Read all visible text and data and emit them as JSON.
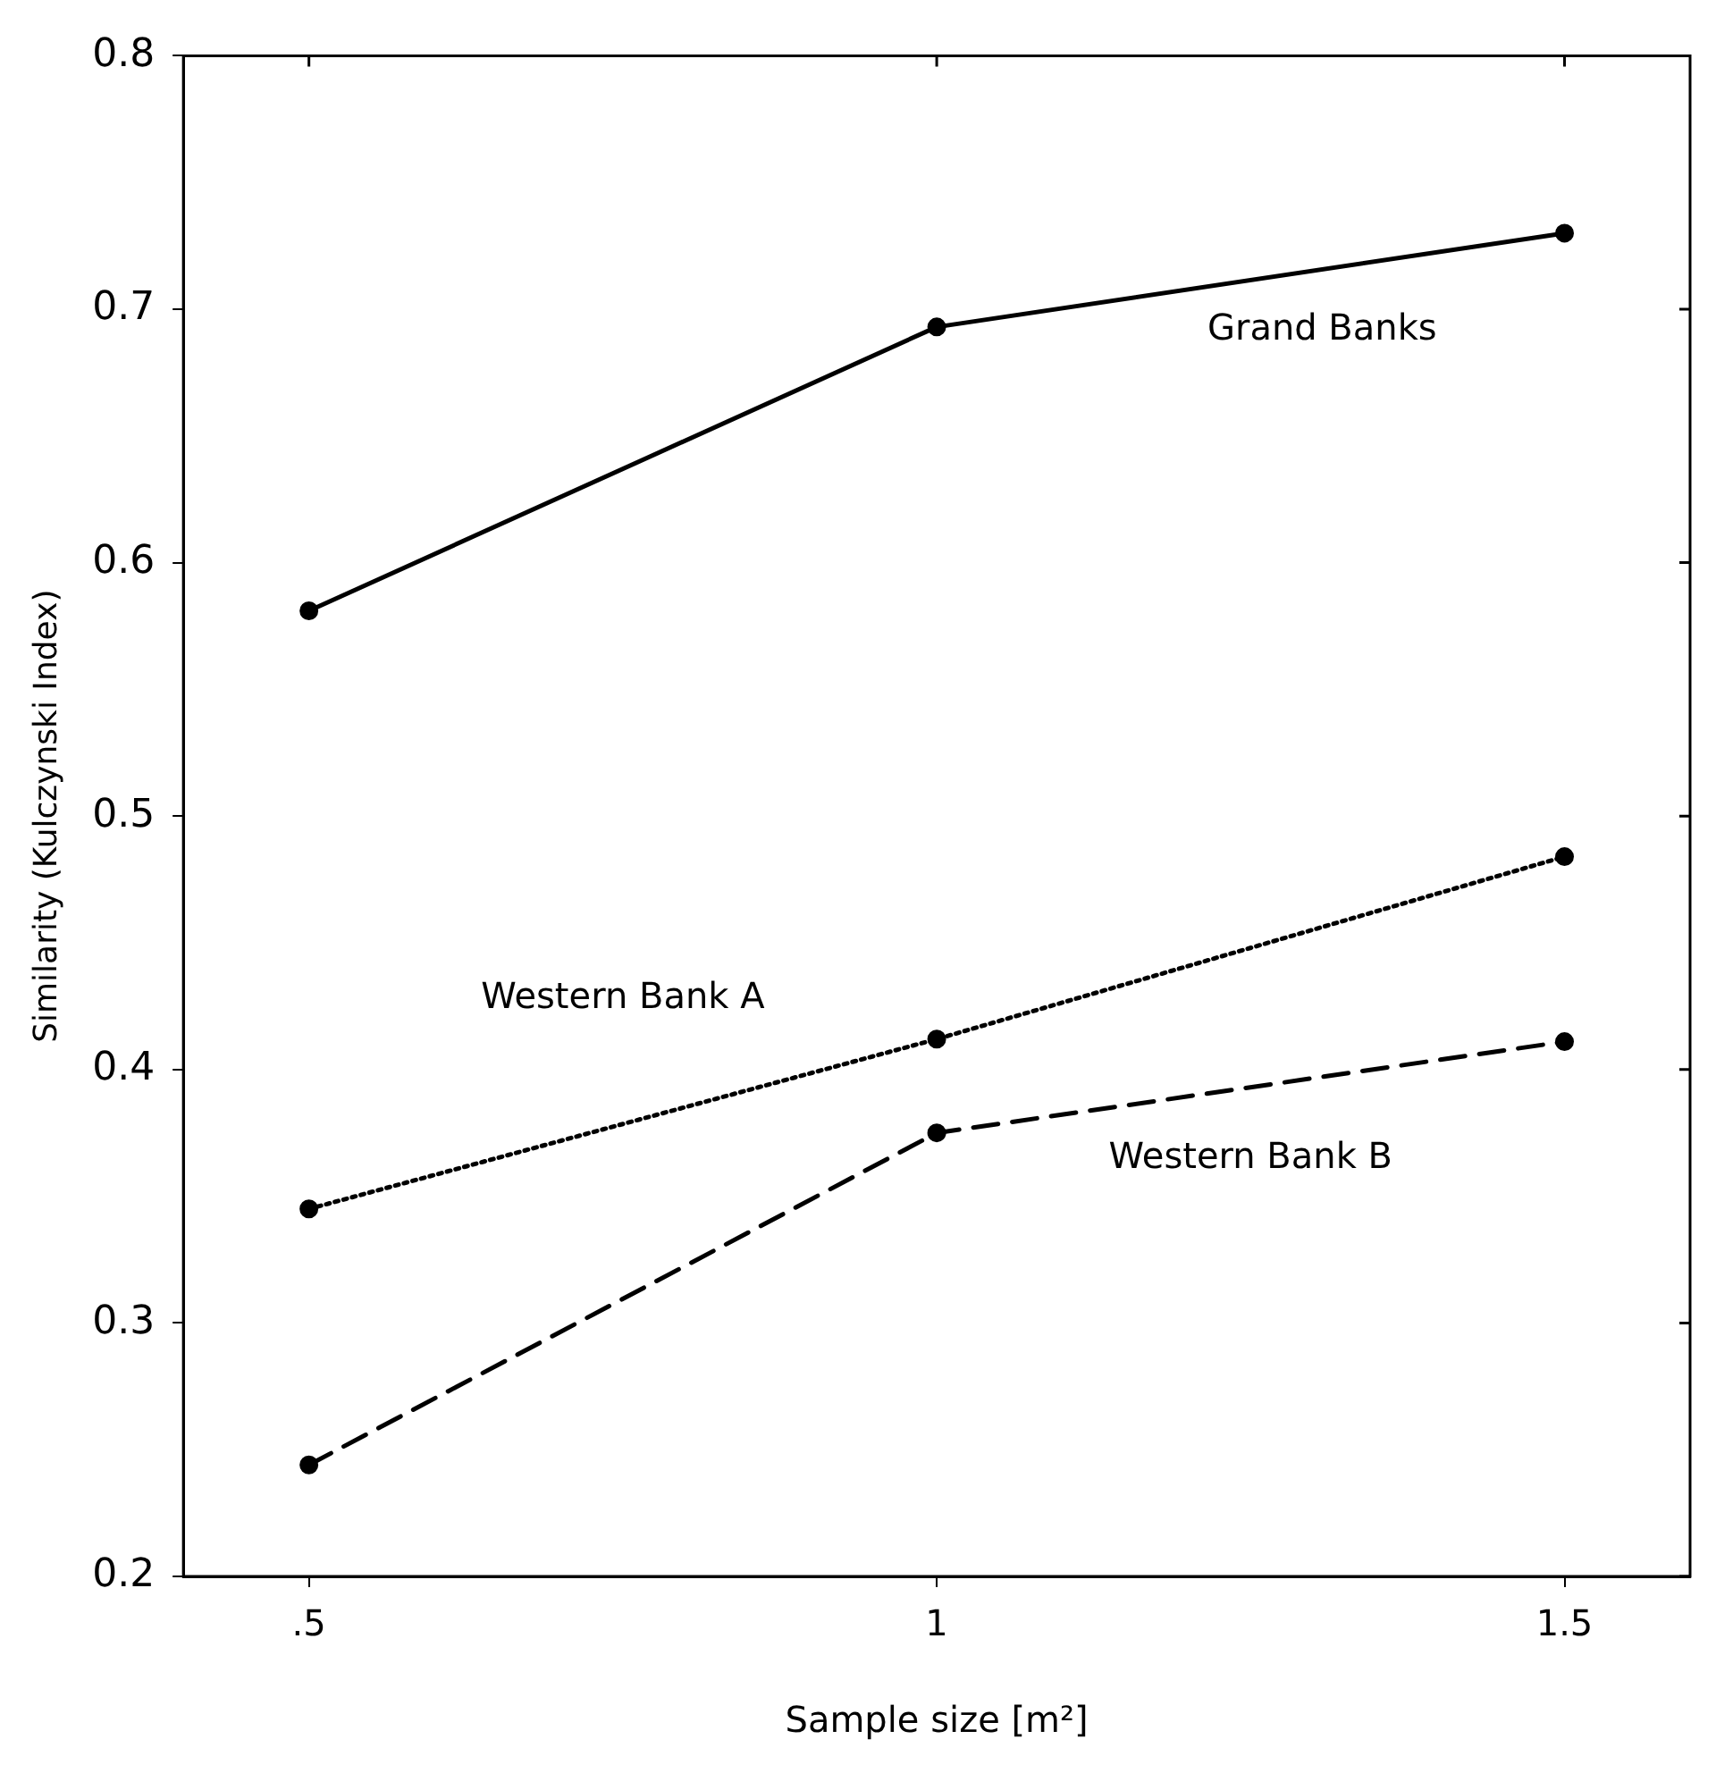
{
  "chart_data": {
    "type": "line",
    "xlabel": "Sample size [m²]",
    "ylabel": "Similarity (Kulczynski Index)",
    "x": [
      0.5,
      1,
      1.5
    ],
    "series": [
      {
        "name": "Grand Banks",
        "color": "#000000",
        "line_style": "solid",
        "values": [
          0.581,
          0.693,
          0.73
        ]
      },
      {
        "name": "Western Bank A",
        "color": "#000000",
        "line_style": "dotted",
        "values": [
          0.345,
          0.412,
          0.484
        ]
      },
      {
        "name": "Western Bank B",
        "color": "#000000",
        "line_style": "dashed",
        "values": [
          0.244,
          0.375,
          0.411
        ]
      }
    ],
    "xlim": [
      0.4,
      1.6
    ],
    "xticks": [
      {
        "value": 0.5,
        "label": ".5"
      },
      1,
      1.5
    ],
    "ylim": [
      0.2,
      0.8
    ],
    "yticks": [
      0.2,
      0.3,
      0.4,
      0.5,
      0.6,
      0.7,
      0.8
    ],
    "grid": false,
    "legend": false,
    "marker": "circle"
  }
}
